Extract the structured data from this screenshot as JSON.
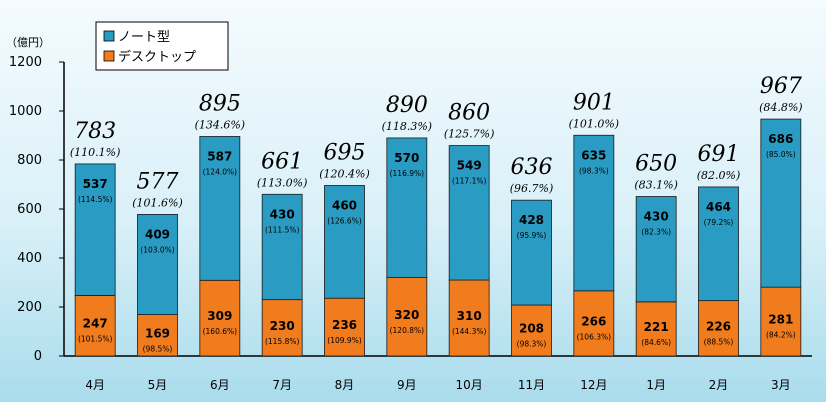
{
  "chart_data": {
    "type": "bar",
    "stacked": true,
    "unit_label": "（億円）",
    "ylim": [
      0,
      1200
    ],
    "yticks": [
      "0",
      "200",
      "400",
      "600",
      "800",
      "1000",
      "1200"
    ],
    "grid": false,
    "legend_position": "top-left",
    "categories": [
      "4月",
      "5月",
      "6月",
      "7月",
      "8月",
      "9月",
      "10月",
      "11月",
      "12月",
      "1月",
      "2月",
      "3月"
    ],
    "series": [
      {
        "name": "デスクトップ",
        "color": "#f07c1e",
        "values": [
          247,
          169,
          309,
          230,
          236,
          320,
          310,
          208,
          266,
          221,
          226,
          281
        ],
        "labels": [
          "247",
          "169",
          "309",
          "230",
          "236",
          "320",
          "310",
          "208",
          "266",
          "221",
          "226",
          "281"
        ],
        "pct": [
          "(101.5%)",
          "(98.5%)",
          "(160.6%)",
          "(115.8%)",
          "(109.9%)",
          "(120.8%)",
          "(144.3%)",
          "(98.3%)",
          "(106.3%)",
          "(84.6%)",
          "(88.5%)",
          "(84.2%)"
        ]
      },
      {
        "name": "ノート型",
        "color": "#2a9cc4",
        "values": [
          537,
          409,
          587,
          430,
          460,
          570,
          549,
          428,
          635,
          430,
          464,
          686
        ],
        "labels": [
          "537",
          "409",
          "587",
          "430",
          "460",
          "570",
          "549",
          "428",
          "635",
          "430",
          "464",
          "686"
        ],
        "pct": [
          "(114.5%)",
          "(103.0%)",
          "(124.0%)",
          "(111.5%)",
          "(126.6%)",
          "(116.9%)",
          "(117.1%)",
          "(95.9%)",
          "(98.3%)",
          "(82.3%)",
          "(79.2%)",
          "(85.0%)"
        ]
      }
    ],
    "totals": {
      "values": [
        783,
        577,
        895,
        661,
        695,
        890,
        860,
        636,
        901,
        650,
        691,
        967
      ],
      "labels": [
        "783",
        "577",
        "895",
        "661",
        "695",
        "890",
        "860",
        "636",
        "901",
        "650",
        "691",
        "967"
      ],
      "pct": [
        "(110.1%)",
        "(101.6%)",
        "(134.6%)",
        "(113.0%)",
        "(120.4%)",
        "(118.3%)",
        "(125.7%)",
        "(96.7%)",
        "(101.0%)",
        "(83.1%)",
        "(82.0%)",
        "(84.8%)"
      ]
    }
  }
}
